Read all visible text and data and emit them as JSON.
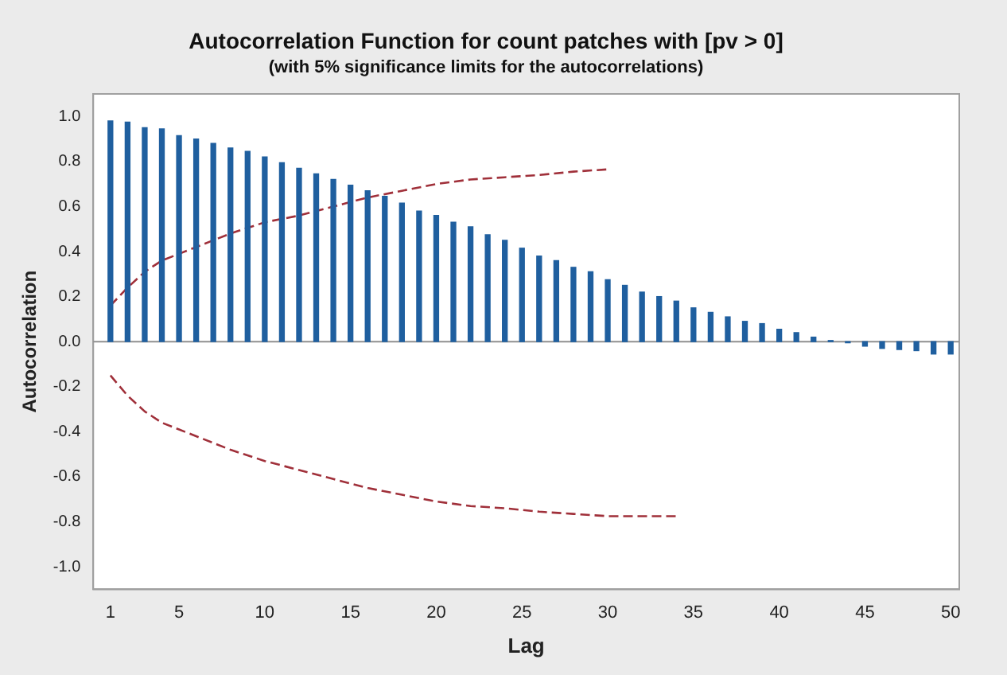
{
  "chart_data": {
    "type": "bar",
    "title": "Autocorrelation Function for count patches with [pv > 0]",
    "subtitle": "(with 5% significance limits for the autocorrelations)",
    "xlabel": "Lag",
    "ylabel": "Autocorrelation",
    "xlim": [
      0,
      50.5
    ],
    "xticks": [
      1,
      5,
      10,
      15,
      20,
      25,
      30,
      35,
      40,
      45,
      50
    ],
    "ylim": [
      -1.1,
      1.1
    ],
    "yticks": [
      {
        "value": 1,
        "label": "1.0"
      },
      0.8,
      0.6,
      0.4,
      0.2,
      {
        "value": 0,
        "label": "0.0"
      },
      -0.2,
      -0.4,
      -0.6,
      -0.8,
      {
        "value": -1,
        "label": "-1.0"
      }
    ],
    "grid": false,
    "legend": false,
    "ref_lines": [
      {
        "axis": "y",
        "value": 0,
        "color": "#909090"
      }
    ],
    "series": [
      {
        "color": "#1f5f9f",
        "x": [
          1,
          2,
          3,
          4,
          5,
          6,
          7,
          8,
          9,
          10,
          11,
          12,
          13,
          14,
          15,
          16,
          17,
          18,
          19,
          20,
          21,
          22,
          23,
          24,
          25,
          26,
          27,
          28,
          29,
          30,
          31,
          32,
          33,
          34,
          35,
          36,
          37,
          38,
          39,
          40,
          41,
          42,
          43,
          44,
          45,
          46,
          47,
          48,
          49,
          50
        ],
        "values": [
          0.98,
          0.975,
          0.95,
          0.945,
          0.915,
          0.9,
          0.88,
          0.86,
          0.845,
          0.82,
          0.795,
          0.77,
          0.745,
          0.72,
          0.695,
          0.67,
          0.645,
          0.615,
          0.58,
          0.56,
          0.53,
          0.51,
          0.475,
          0.45,
          0.415,
          0.38,
          0.36,
          0.33,
          0.31,
          0.275,
          0.25,
          0.22,
          0.2,
          0.18,
          0.15,
          0.13,
          0.11,
          0.09,
          0.08,
          0.055,
          0.04,
          0.02,
          0.005,
          -0.005,
          -0.02,
          -0.03,
          -0.035,
          -0.04,
          -0.055,
          -0.055
        ]
      },
      {
        "type": "line",
        "color": "#a0303a",
        "line_style": "dashed",
        "marker": "none",
        "x": [
          1,
          2,
          3,
          4,
          5,
          6,
          7,
          8,
          10,
          12,
          14,
          16,
          18,
          20,
          22,
          24,
          26,
          28,
          30
        ],
        "values": [
          0.16,
          0.24,
          0.31,
          0.36,
          0.39,
          0.42,
          0.45,
          0.48,
          0.53,
          0.56,
          0.6,
          0.64,
          0.67,
          0.7,
          0.72,
          0.73,
          0.74,
          0.755,
          0.765
        ]
      },
      {
        "type": "line",
        "color": "#a0303a",
        "line_style": "dashed",
        "marker": "none",
        "x": [
          1,
          2,
          3,
          4,
          5,
          6,
          7,
          8,
          10,
          12,
          14,
          16,
          18,
          20,
          22,
          24,
          26,
          28,
          30,
          32,
          34
        ],
        "values": [
          -0.15,
          -0.24,
          -0.31,
          -0.36,
          -0.39,
          -0.42,
          -0.45,
          -0.48,
          -0.53,
          -0.57,
          -0.61,
          -0.65,
          -0.68,
          -0.71,
          -0.73,
          -0.74,
          -0.755,
          -0.765,
          -0.775,
          -0.775,
          -0.775
        ]
      }
    ]
  }
}
